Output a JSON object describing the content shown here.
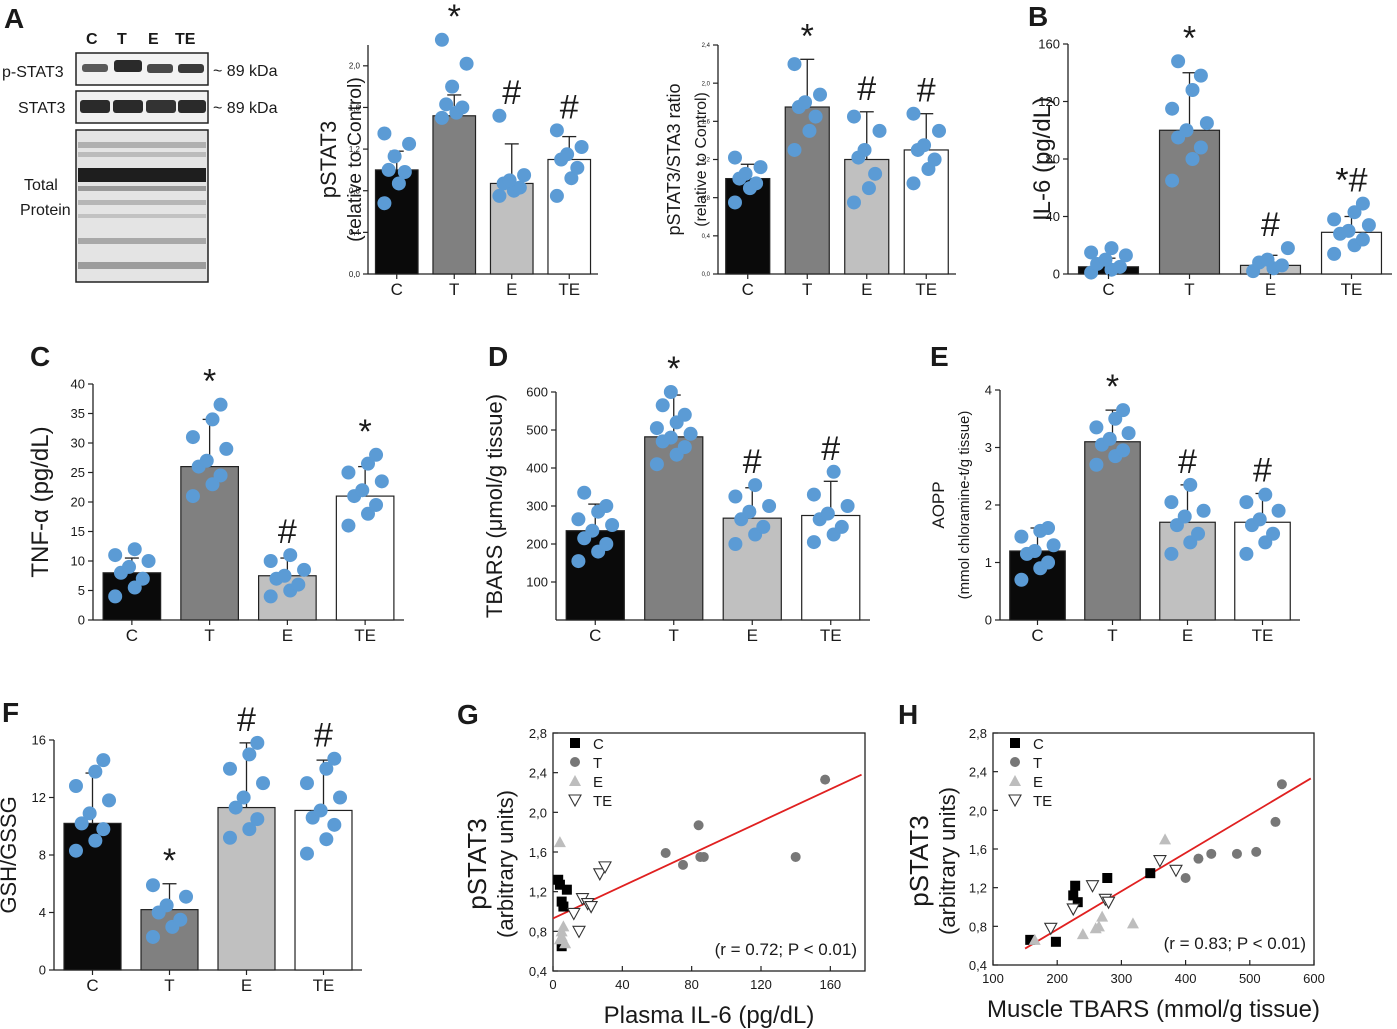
{
  "colors": {
    "dot": "#5b9bd5",
    "C": "#0a0a0a",
    "T": "#808080",
    "E": "#c0c0c0",
    "TE": "#ffffff",
    "fit": "#e02020"
  },
  "blot": {
    "letter": "A",
    "lanes": [
      "C",
      "T",
      "E",
      "TE"
    ],
    "row1": "p-STAT3",
    "row2": "STAT3",
    "kda1": "~ 89 kDa",
    "kda2": "~ 89 kDa",
    "total1": "Total",
    "total2": "Protein"
  },
  "chart_data": [
    {
      "id": "pstat3",
      "type": "bar",
      "letter": "",
      "categories": [
        "C",
        "T",
        "E",
        "TE"
      ],
      "values": [
        1.0,
        1.52,
        0.87,
        1.1
      ],
      "errors": [
        0.18,
        0.2,
        0.38,
        0.22
      ],
      "marks": [
        "",
        "*",
        "#",
        "#"
      ],
      "ylabel": [
        "pSTAT3",
        "(relative to Control)"
      ],
      "ylim": [
        0,
        2.2
      ],
      "yticks": [
        "0,0",
        "0,4",
        "0,8",
        "1,2",
        "1,6",
        "2,0"
      ],
      "ytick_values": [
        0,
        0.4,
        0.8,
        1.2,
        1.6,
        2.0
      ],
      "points": [
        [
          0.68,
          0.87,
          0.98,
          1.0,
          1.13,
          1.25,
          1.35
        ],
        [
          1.5,
          1.55,
          1.6,
          1.63,
          1.8,
          2.02,
          2.25
        ],
        [
          0.75,
          0.8,
          0.83,
          0.87,
          0.9,
          0.95,
          1.52
        ],
        [
          0.75,
          0.92,
          1.02,
          1.1,
          1.15,
          1.22,
          1.38
        ]
      ]
    },
    {
      "id": "ratio",
      "type": "bar",
      "letter": "",
      "categories": [
        "C",
        "T",
        "E",
        "TE"
      ],
      "values": [
        1.0,
        1.75,
        1.2,
        1.3
      ],
      "errors": [
        0.15,
        0.5,
        0.5,
        0.38
      ],
      "marks": [
        "",
        "*",
        "#",
        "#"
      ],
      "ylabel": [
        "pSTAT3/STA3 ratio",
        "(relative to Control)"
      ],
      "ylim": [
        0,
        2.4
      ],
      "yticks": [
        "0,0",
        "0,4",
        "0,8",
        "1,2",
        "1,6",
        "2,0",
        "2,4"
      ],
      "ytick_values": [
        0,
        0.4,
        0.8,
        1.2,
        1.6,
        2.0,
        2.4
      ],
      "points": [
        [
          0.75,
          0.9,
          0.95,
          1.0,
          1.05,
          1.12,
          1.22
        ],
        [
          1.3,
          1.5,
          1.65,
          1.75,
          1.8,
          1.88,
          2.2
        ],
        [
          0.75,
          0.9,
          1.05,
          1.22,
          1.3,
          1.5,
          1.65
        ],
        [
          0.95,
          1.1,
          1.2,
          1.3,
          1.35,
          1.5,
          1.68
        ]
      ]
    },
    {
      "id": "il6",
      "type": "bar",
      "letter": "B",
      "categories": [
        "C",
        "T",
        "E",
        "TE"
      ],
      "values": [
        5,
        100,
        6,
        29
      ],
      "errors": [
        6,
        40,
        7,
        11
      ],
      "marks": [
        "",
        "*",
        "#",
        "*#"
      ],
      "ylabel": [
        "IL-6 (pg/dL)"
      ],
      "ylim": [
        0,
        160
      ],
      "yticks": [
        "0",
        "40",
        "80",
        "120",
        "160"
      ],
      "ytick_values": [
        0,
        40,
        80,
        120,
        160
      ],
      "points": [
        [
          1,
          3,
          5,
          7,
          10,
          13,
          15,
          18
        ],
        [
          65,
          80,
          88,
          95,
          100,
          105,
          115,
          128,
          138,
          148
        ],
        [
          2,
          4,
          6,
          8,
          10,
          18
        ],
        [
          14,
          20,
          24,
          28,
          30,
          34,
          38,
          43,
          49
        ]
      ]
    },
    {
      "id": "tnf",
      "type": "bar",
      "letter": "C",
      "categories": [
        "C",
        "T",
        "E",
        "TE"
      ],
      "values": [
        8,
        26,
        7.5,
        21
      ],
      "errors": [
        2.5,
        8,
        3,
        5
      ],
      "marks": [
        "",
        "*",
        "#",
        "*"
      ],
      "ylabel": [
        "TNF-α (pg/dL)"
      ],
      "ylim": [
        0,
        40
      ],
      "yticks": [
        "0",
        "5",
        "10",
        "15",
        "20",
        "25",
        "30",
        "35",
        "40"
      ],
      "ytick_values": [
        0,
        5,
        10,
        15,
        20,
        25,
        30,
        35,
        40
      ],
      "points": [
        [
          4,
          5.5,
          7,
          8,
          9,
          10,
          11,
          12
        ],
        [
          21,
          23,
          24.5,
          26,
          27,
          29,
          31,
          34,
          36.5
        ],
        [
          4,
          5,
          6,
          7,
          7.5,
          8.5,
          10,
          11
        ],
        [
          16,
          18,
          19.5,
          21,
          22,
          23.5,
          25,
          26.5,
          28
        ]
      ]
    },
    {
      "id": "tbars",
      "type": "bar",
      "letter": "D",
      "categories": [
        "C",
        "T",
        "E",
        "TE"
      ],
      "values": [
        235,
        482,
        268,
        275
      ],
      "errors": [
        70,
        110,
        80,
        90
      ],
      "marks": [
        "",
        "*",
        "#",
        "#"
      ],
      "ylabel": [
        "TBARS (μmol/g tissue)"
      ],
      "ylim": [
        0,
        600
      ],
      "yticks": [
        "100",
        "200",
        "300",
        "400",
        "500",
        "600"
      ],
      "ytick_values": [
        100,
        200,
        300,
        400,
        500,
        600
      ],
      "points": [
        [
          155,
          180,
          200,
          215,
          235,
          250,
          265,
          285,
          300,
          335
        ],
        [
          410,
          435,
          455,
          470,
          480,
          490,
          505,
          520,
          540,
          565,
          600
        ],
        [
          200,
          225,
          245,
          265,
          285,
          300,
          325,
          355
        ],
        [
          205,
          225,
          245,
          265,
          280,
          300,
          330,
          390
        ]
      ]
    },
    {
      "id": "aopp",
      "type": "bar",
      "letter": "E",
      "categories": [
        "C",
        "T",
        "E",
        "TE"
      ],
      "values": [
        1.2,
        3.1,
        1.7,
        1.7
      ],
      "errors": [
        0.4,
        0.55,
        0.65,
        0.5
      ],
      "marks": [
        "",
        "*",
        "#",
        "#"
      ],
      "ylabel": [
        "AOPP",
        "(mmol chloramine-t/g tissue)"
      ],
      "ylim": [
        0,
        4
      ],
      "yticks": [
        "0",
        "1",
        "2",
        "3",
        "4"
      ],
      "ytick_values": [
        0,
        1,
        2,
        3,
        4
      ],
      "points": [
        [
          0.7,
          0.9,
          1.0,
          1.15,
          1.2,
          1.3,
          1.45,
          1.55,
          1.6
        ],
        [
          2.7,
          2.85,
          2.95,
          3.05,
          3.15,
          3.25,
          3.35,
          3.5,
          3.65
        ],
        [
          1.15,
          1.35,
          1.5,
          1.65,
          1.8,
          1.9,
          2.05,
          2.35
        ],
        [
          1.15,
          1.35,
          1.5,
          1.65,
          1.75,
          1.9,
          2.05,
          2.18
        ]
      ]
    },
    {
      "id": "gsh",
      "type": "bar",
      "letter": "F",
      "categories": [
        "C",
        "T",
        "E",
        "TE"
      ],
      "values": [
        10.2,
        4.2,
        11.3,
        11.1
      ],
      "errors": [
        3.5,
        1.8,
        4.5,
        3.5
      ],
      "marks": [
        "",
        "*",
        "#",
        "#"
      ],
      "ylabel": [
        "GSH/GSSG"
      ],
      "ylim": [
        0,
        16
      ],
      "yticks": [
        "0",
        "4",
        "8",
        "12",
        "16"
      ],
      "ytick_values": [
        0,
        4,
        8,
        12,
        16
      ],
      "points": [
        [
          8.3,
          9.0,
          9.8,
          10.2,
          10.9,
          11.8,
          12.8,
          13.8,
          14.6
        ],
        [
          2.3,
          3.0,
          3.5,
          4.0,
          4.5,
          5.1,
          5.9
        ],
        [
          9.2,
          9.8,
          10.5,
          11.3,
          12,
          13,
          14,
          15,
          15.8
        ],
        [
          8.1,
          9.1,
          10.1,
          10.6,
          11.1,
          12,
          13,
          14,
          14.7
        ]
      ]
    },
    {
      "id": "scatterG",
      "type": "scatter",
      "letter": "G",
      "xlabel": "Plasma IL-6 (pg/dL)",
      "ylabel": [
        "pSTAT3",
        "(arbitrary units)"
      ],
      "xlim": [
        0,
        180
      ],
      "ylim": [
        0.4,
        2.8
      ],
      "xticks": [
        "0",
        "40",
        "80",
        "120",
        "160"
      ],
      "xtick_values": [
        0,
        40,
        80,
        120,
        160
      ],
      "yticks": [
        "0,4",
        "0,8",
        "1,2",
        "1,6",
        "2,0",
        "2,4",
        "2,8"
      ],
      "ytick_values": [
        0.4,
        0.8,
        1.2,
        1.6,
        2.0,
        2.4,
        2.8
      ],
      "legend": [
        "C",
        "T",
        "E",
        "TE"
      ],
      "annotation": "(r = 0.72; P < 0.01)",
      "fit": [
        [
          0,
          0.93
        ],
        [
          178,
          2.38
        ]
      ],
      "series": [
        {
          "name": "C",
          "marker": "square",
          "x": [
            3,
            4,
            5,
            8,
            6,
            5
          ],
          "y": [
            1.32,
            1.27,
            1.1,
            1.22,
            1.05,
            0.65
          ]
        },
        {
          "name": "T",
          "marker": "circle",
          "x": [
            65,
            75,
            84,
            85,
            87,
            140,
            157
          ],
          "y": [
            1.59,
            1.47,
            1.87,
            1.55,
            1.55,
            1.55,
            2.33
          ]
        },
        {
          "name": "E",
          "marker": "triangle",
          "x": [
            4,
            4,
            5,
            6,
            5,
            7
          ],
          "y": [
            1.7,
            0.72,
            0.8,
            0.85,
            0.75,
            0.68
          ]
        },
        {
          "name": "TE",
          "marker": "triangle-down",
          "x": [
            12,
            17,
            20,
            22,
            27,
            30,
            15
          ],
          "y": [
            0.98,
            1.13,
            1.08,
            1.05,
            1.38,
            1.45,
            0.8
          ]
        }
      ]
    },
    {
      "id": "scatterH",
      "type": "scatter",
      "letter": "H",
      "xlabel": "Muscle TBARS (mmol/g tissue)",
      "ylabel": [
        "pSTAT3",
        "(arbitrary units)"
      ],
      "xlim": [
        100,
        600
      ],
      "ylim": [
        0.4,
        2.8
      ],
      "xticks": [
        "100",
        "200",
        "300",
        "400",
        "500",
        "600"
      ],
      "xtick_values": [
        100,
        200,
        300,
        400,
        500,
        600
      ],
      "yticks": [
        "0,4",
        "0,8",
        "1,2",
        "1,6",
        "2,0",
        "2,4",
        "2,8"
      ],
      "ytick_values": [
        0.4,
        0.8,
        1.2,
        1.6,
        2.0,
        2.4,
        2.8
      ],
      "legend": [
        "C",
        "T",
        "E",
        "TE"
      ],
      "annotation": "(r = 0.83; P < 0.01)",
      "fit": [
        [
          150,
          0.57
        ],
        [
          595,
          2.33
        ]
      ],
      "series": [
        {
          "name": "C",
          "marker": "square",
          "x": [
            158,
            198,
            228,
            225,
            232,
            278,
            345
          ],
          "y": [
            0.66,
            0.64,
            1.22,
            1.12,
            1.05,
            1.3,
            1.35
          ]
        },
        {
          "name": "T",
          "marker": "circle",
          "x": [
            400,
            420,
            440,
            480,
            510,
            540,
            550
          ],
          "y": [
            1.3,
            1.5,
            1.55,
            1.55,
            1.57,
            1.88,
            2.27
          ]
        },
        {
          "name": "E",
          "marker": "triangle",
          "x": [
            165,
            240,
            260,
            265,
            270,
            318,
            368
          ],
          "y": [
            0.66,
            0.72,
            0.78,
            0.8,
            0.9,
            0.83,
            1.7
          ]
        },
        {
          "name": "TE",
          "marker": "triangle-down",
          "x": [
            190,
            225,
            255,
            275,
            280,
            360,
            385
          ],
          "y": [
            0.78,
            0.98,
            1.22,
            1.08,
            1.05,
            1.48,
            1.38
          ]
        }
      ]
    }
  ]
}
